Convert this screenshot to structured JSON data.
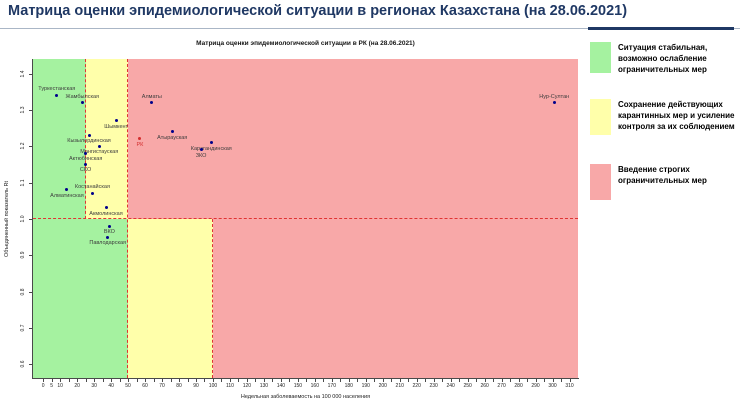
{
  "page_title": "Матрица оценки эпидемиологической ситуации в регионах Казахстана (на 28.06.2021)",
  "colors": {
    "accent": "#1f3864",
    "rule": "#aab6c6"
  },
  "chart_data": {
    "type": "scatter",
    "title": "Матрица оценки эпидемиологической ситуации в РК (на 28.06.2021)",
    "xlabel": "Недельная заболеваемость на 100 000 населения",
    "ylabel": "Объединенный показатель Rt",
    "xlim": [
      -6,
      315
    ],
    "ylim": [
      0.562,
      1.44
    ],
    "x_tick_labels": [
      0,
      5,
      10,
      20,
      30,
      40,
      50,
      60,
      70,
      80,
      90,
      100,
      110,
      120,
      130,
      140,
      150,
      160,
      170,
      180,
      190,
      200,
      210,
      220,
      230,
      240,
      250,
      260,
      270,
      280,
      290,
      300,
      310
    ],
    "x_minor_step": 5,
    "y_ticks": [
      0.6,
      0.7,
      0.8,
      0.9,
      1.0,
      1.1,
      1.2,
      1.3,
      1.4
    ],
    "grid": false,
    "legend_position": "right",
    "colors": {
      "zone_green": "#a5f2a0",
      "zone_yellow": "#ffffaa",
      "zone_pink": "#f8a8a8",
      "threshold": "#e03333",
      "point": "#00008b",
      "point_label": "#3d3d3d",
      "rk": "#d32f2f"
    },
    "zones": [
      {
        "x0": -6,
        "x1": 25,
        "rt0": 1.0,
        "rt1": 1.44,
        "color": "green"
      },
      {
        "x0": 25,
        "x1": 50,
        "rt0": 1.0,
        "rt1": 1.44,
        "color": "yellow"
      },
      {
        "x0": 50,
        "x1": 315,
        "rt0": 1.0,
        "rt1": 1.44,
        "color": "pink"
      },
      {
        "x0": -6,
        "x1": 50,
        "rt0": 0.562,
        "rt1": 1.0,
        "color": "green"
      },
      {
        "x0": 50,
        "x1": 100,
        "rt0": 0.562,
        "rt1": 1.0,
        "color": "yellow"
      },
      {
        "x0": 100,
        "x1": 315,
        "rt0": 0.562,
        "rt1": 1.0,
        "color": "pink"
      }
    ],
    "threshold_lines": [
      {
        "type": "h",
        "rt": 1.0,
        "x0": -6,
        "x1": 315
      },
      {
        "type": "v",
        "x": 25,
        "rt0": 1.0,
        "rt1": 1.44
      },
      {
        "type": "v",
        "x": 50,
        "rt0": 0.562,
        "rt1": 1.44
      },
      {
        "type": "v",
        "x": 100,
        "rt0": 0.562,
        "rt1": 1.0
      }
    ],
    "points": [
      {
        "name": "Туркестанская",
        "x": 8,
        "rt": 1.34,
        "label_pos": "above"
      },
      {
        "name": "Жамбылская",
        "x": 23,
        "rt": 1.32,
        "label_pos": "above"
      },
      {
        "name": "Алматы",
        "x": 64,
        "rt": 1.32,
        "label_pos": "above"
      },
      {
        "name": "Нур-Султан",
        "x": 301,
        "rt": 1.32,
        "label_pos": "above"
      },
      {
        "name": "Шымкент",
        "x": 43,
        "rt": 1.27,
        "label_pos": "below"
      },
      {
        "name": "Атырауская",
        "x": 76,
        "rt": 1.24,
        "label_pos": "below"
      },
      {
        "name": "Кызылординская",
        "x": 27,
        "rt": 1.23,
        "label_pos": "below"
      },
      {
        "name": "РК",
        "x": 57,
        "rt": 1.22,
        "label_pos": "below",
        "color": "rk"
      },
      {
        "name": "Карагандинская",
        "x": 99,
        "rt": 1.21,
        "label_pos": "below"
      },
      {
        "name": "Мангистауская",
        "x": 33,
        "rt": 1.2,
        "label_pos": "below"
      },
      {
        "name": "ЗКО",
        "x": 93,
        "rt": 1.19,
        "label_pos": "below"
      },
      {
        "name": "Актюбинская",
        "x": 25,
        "rt": 1.18,
        "label_pos": "below"
      },
      {
        "name": "СКО",
        "x": 25,
        "rt": 1.15,
        "label_pos": "below"
      },
      {
        "name": "Алматинская",
        "x": 14,
        "rt": 1.08,
        "label_pos": "below"
      },
      {
        "name": "Костанайская",
        "x": 29,
        "rt": 1.07,
        "label_pos": "above"
      },
      {
        "name": "Акмолинская",
        "x": 37,
        "rt": 1.03,
        "label_pos": "below"
      },
      {
        "name": "ВКО",
        "x": 39,
        "rt": 0.98,
        "label_pos": "below"
      },
      {
        "name": "Павлодарская",
        "x": 38,
        "rt": 0.95,
        "label_pos": "below"
      }
    ]
  },
  "legend": {
    "items": [
      {
        "color": "#a5f2a0",
        "text": "Ситуация стабильная,\nвозможно ослабление\nограничительных мер"
      },
      {
        "color": "#ffffaa",
        "text": "Сохранение действующих\nкарантинных мер и усиление\nконтроля за их соблюдением"
      },
      {
        "color": "#f8a8a8",
        "text": "Введение строгих\nограничительных мер"
      }
    ]
  }
}
